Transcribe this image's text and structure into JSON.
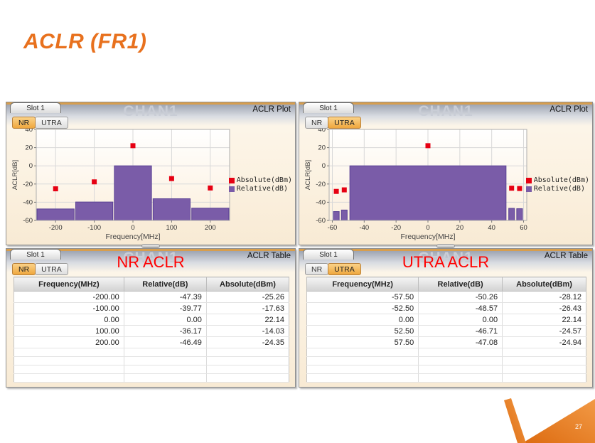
{
  "slide": {
    "title": "ACLR (FR1)",
    "page_number": "27",
    "accent_orange": "#E8711E",
    "annotation_red": "#FF0000"
  },
  "panels": {
    "plot_nr": {
      "slot_label": "Slot 1",
      "watermark": "CHAN1",
      "type_label": "ACLR Plot",
      "tabs": [
        {
          "label": "NR",
          "active": true
        },
        {
          "label": "UTRA",
          "active": false
        }
      ]
    },
    "plot_utra": {
      "slot_label": "Slot 1",
      "watermark": "CHAN1",
      "type_label": "ACLR Plot",
      "tabs": [
        {
          "label": "NR",
          "active": false
        },
        {
          "label": "UTRA",
          "active": true
        }
      ]
    },
    "table_nr": {
      "slot_label": "Slot 1",
      "watermark": "CHAN1",
      "type_label": "ACLR Table",
      "tabs": [
        {
          "label": "NR",
          "active": true
        },
        {
          "label": "UTRA",
          "active": false
        }
      ]
    },
    "table_utra": {
      "slot_label": "Slot 1",
      "watermark": "CHAN1",
      "type_label": "ACLR Table",
      "tabs": [
        {
          "label": "NR",
          "active": false
        },
        {
          "label": "UTRA",
          "active": true
        }
      ]
    }
  },
  "chart_data": [
    {
      "id": "nr_plot",
      "type": "bar",
      "xlabel": "Frequency[MHz]",
      "ylabel": "ACLR[dB]",
      "xlim": [
        -250,
        250
      ],
      "ylim": [
        -60,
        40
      ],
      "xticks": [
        -200,
        -100,
        0,
        100,
        200
      ],
      "yticks": [
        40,
        20,
        0,
        -20,
        -40,
        -60
      ],
      "grid": true,
      "legend_position": "right",
      "legend": [
        {
          "name": "Absolute(dBm)",
          "color": "#E60012"
        },
        {
          "name": "Relative(dB)",
          "color": "#7A5CA8"
        }
      ],
      "bars": {
        "name": "Relative(dB)",
        "x": [
          -200,
          -100,
          0,
          100,
          200
        ],
        "width": [
          96,
          96,
          96,
          96,
          96
        ],
        "values": [
          -47.39,
          -39.77,
          0.0,
          -36.17,
          -46.49
        ]
      },
      "points": {
        "name": "Absolute(dBm)",
        "x": [
          -200,
          -100,
          0,
          100,
          200
        ],
        "values": [
          -25.26,
          -17.63,
          22.14,
          -14.03,
          -24.35
        ]
      }
    },
    {
      "id": "utra_plot",
      "type": "bar",
      "xlabel": "Frequency[MHz]",
      "ylabel": "ACLR[dB]",
      "xlim": [
        -62,
        62
      ],
      "ylim": [
        -60,
        40
      ],
      "xticks": [
        -60,
        -40,
        -20,
        0,
        20,
        40,
        60
      ],
      "yticks": [
        40,
        20,
        0,
        -20,
        -40,
        -60
      ],
      "grid": true,
      "legend_position": "right",
      "legend": [
        {
          "name": "Absolute(dBm)",
          "color": "#E60012"
        },
        {
          "name": "Relative(dB)",
          "color": "#7A5CA8"
        }
      ],
      "bars": {
        "name": "Relative(dB)",
        "x": [
          -57.5,
          -52.5,
          0,
          52.5,
          57.5
        ],
        "width": [
          3.6,
          3.6,
          98,
          3.6,
          3.6
        ],
        "values": [
          -50.26,
          -48.57,
          0.0,
          -46.71,
          -47.08
        ]
      },
      "points": {
        "name": "Absolute(dBm)",
        "x": [
          -57.5,
          -52.5,
          0,
          52.5,
          57.5
        ],
        "values": [
          -28.12,
          -26.43,
          22.14,
          -24.57,
          -24.94
        ]
      }
    }
  ],
  "tables": {
    "columns": [
      "Frequency(MHz)",
      "Relative(dB)",
      "Absolute(dBm)"
    ],
    "nr": {
      "annotation": "NR ACLR",
      "rows": [
        [
          "-200.00",
          "-47.39",
          "-25.26"
        ],
        [
          "-100.00",
          "-39.77",
          "-17.63"
        ],
        [
          "0.00",
          "0.00",
          "22.14"
        ],
        [
          "100.00",
          "-36.17",
          "-14.03"
        ],
        [
          "200.00",
          "-46.49",
          "-24.35"
        ]
      ],
      "empty_rows": 4
    },
    "utra": {
      "annotation": "UTRA ACLR",
      "rows": [
        [
          "-57.50",
          "-50.26",
          "-28.12"
        ],
        [
          "-52.50",
          "-48.57",
          "-26.43"
        ],
        [
          "0.00",
          "0.00",
          "22.14"
        ],
        [
          "52.50",
          "-46.71",
          "-24.57"
        ],
        [
          "57.50",
          "-47.08",
          "-24.94"
        ]
      ],
      "empty_rows": 4
    }
  }
}
